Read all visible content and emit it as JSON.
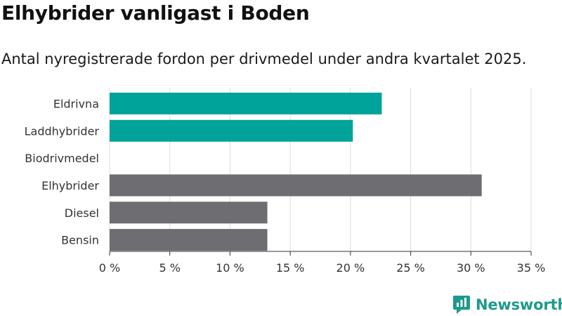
{
  "title": "Elhybrider vanligast i Boden",
  "subtitle": "Antal nyregistrerade fordon per drivmedel under andra kvartalet 2025.",
  "brand": {
    "name": "Newsworthy",
    "icon": "newsworthy-logo-icon",
    "color": "#1e9a8c"
  },
  "chart_data": {
    "type": "bar",
    "orientation": "horizontal",
    "categories": [
      "Eldrivna",
      "Laddhybrider",
      "Biodrivmedel",
      "Elhybrider",
      "Diesel",
      "Bensin"
    ],
    "values": [
      22.6,
      20.2,
      0,
      30.9,
      13.1,
      13.1
    ],
    "colors": [
      "#00a39a",
      "#00a39a",
      "#00a39a",
      "#6e6d72",
      "#6e6d72",
      "#6e6d72"
    ],
    "xlim": [
      0,
      35
    ],
    "xticks": [
      0,
      5,
      10,
      15,
      20,
      25,
      30,
      35
    ],
    "xtick_labels": [
      "0 %",
      "5 %",
      "10 %",
      "15 %",
      "20 %",
      "25 %",
      "30 %",
      "35 %"
    ],
    "grid": "vertical",
    "legend": "none"
  }
}
